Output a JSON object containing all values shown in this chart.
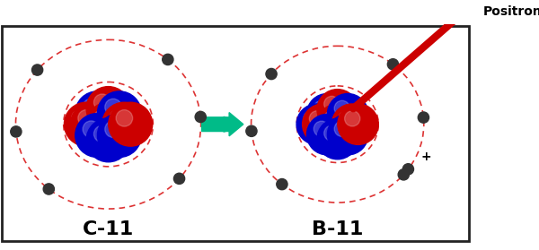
{
  "bg_color": "#ffffff",
  "border_color": "#222222",
  "orbit_color": "#dd3333",
  "orbit_lw": 1.2,
  "proton_color": "#cc0000",
  "neutron_color": "#0000cc",
  "electron_color": "#333333",
  "positron_color": "#cc0000",
  "arrow_color": "#00bb88",
  "label_c11": "C-11",
  "label_b11": "B-11",
  "label_positron": "Positron",
  "label_plus": "+",
  "figsize": [
    6.0,
    2.79
  ],
  "dpi": 100,
  "font_size_label": 16
}
